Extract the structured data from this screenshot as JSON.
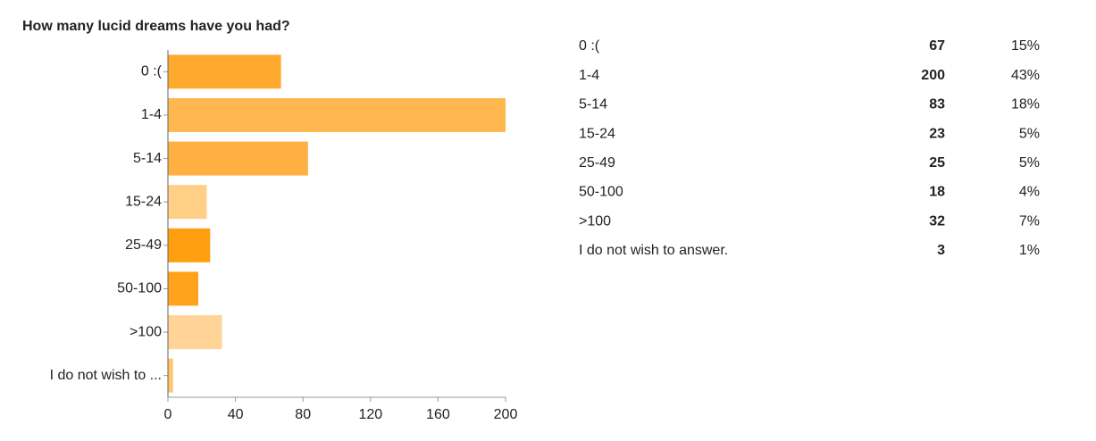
{
  "chart_data": {
    "type": "bar",
    "orientation": "horizontal",
    "title": "How many lucid dreams have you had?",
    "categories": [
      "0 :(",
      "1-4",
      "5-14",
      "15-24",
      "25-49",
      "50-100",
      ">100",
      "I do not wish to ..."
    ],
    "values": [
      67,
      200,
      83,
      23,
      25,
      18,
      32,
      3
    ],
    "colors": [
      "#ffa92d",
      "#ffb84f",
      "#ffb043",
      "#ffcf86",
      "#ff9e0e",
      "#ffa21c",
      "#ffd496",
      "#ffc46c"
    ],
    "xlim": [
      0,
      200
    ],
    "xticks": [
      0,
      40,
      80,
      120,
      160,
      200
    ]
  },
  "table": {
    "rows": [
      [
        "0 :(",
        67,
        "15%"
      ],
      [
        "1-4",
        200,
        "43%"
      ],
      [
        "5-14",
        83,
        "18%"
      ],
      [
        "15-24",
        23,
        "5%"
      ],
      [
        "25-49",
        25,
        "5%"
      ],
      [
        "50-100",
        18,
        "4%"
      ],
      [
        ">100",
        32,
        "7%"
      ],
      [
        "I do not wish to answer.",
        3,
        "1%"
      ]
    ]
  }
}
